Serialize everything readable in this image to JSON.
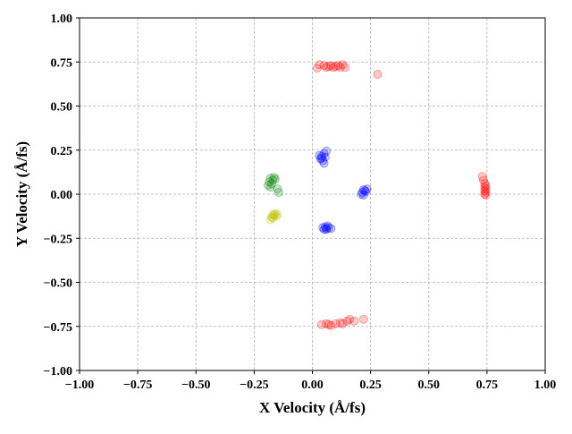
{
  "chart_data": {
    "type": "scatter",
    "xlabel": "X Velocity (Å/fs)",
    "ylabel": "Y Velocity (Å/fs)",
    "xlim": [
      -1.0,
      1.0
    ],
    "ylim": [
      -1.0,
      1.0
    ],
    "xticks": [
      -1.0,
      -0.75,
      -0.5,
      -0.25,
      0.0,
      0.25,
      0.5,
      0.75,
      1.0
    ],
    "yticks": [
      -1.0,
      -0.75,
      -0.5,
      -0.25,
      0.0,
      0.25,
      0.5,
      0.75,
      1.0
    ],
    "xtick_labels": [
      "−1.00",
      "−0.75",
      "−0.50",
      "−0.25",
      "0.00",
      "0.25",
      "0.50",
      "0.75",
      "1.00"
    ],
    "ytick_labels": [
      "−1.00",
      "−0.75",
      "−0.50",
      "−0.25",
      "0.00",
      "0.25",
      "0.50",
      "0.75",
      "1.00"
    ],
    "grid": true,
    "marker_opacity": 0.2,
    "series": [
      {
        "color": "#ff0000",
        "points": [
          [
            0.02,
            0.715
          ],
          [
            0.03,
            0.735
          ],
          [
            0.05,
            0.73
          ],
          [
            0.06,
            0.72
          ],
          [
            0.07,
            0.725
          ],
          [
            0.08,
            0.73
          ],
          [
            0.09,
            0.72
          ],
          [
            0.1,
            0.725
          ],
          [
            0.11,
            0.73
          ],
          [
            0.12,
            0.72
          ],
          [
            0.13,
            0.735
          ],
          [
            0.14,
            0.72
          ],
          [
            0.28,
            0.68
          ],
          [
            0.04,
            -0.74
          ],
          [
            0.06,
            -0.735
          ],
          [
            0.07,
            -0.74
          ],
          [
            0.08,
            -0.745
          ],
          [
            0.1,
            -0.735
          ],
          [
            0.12,
            -0.73
          ],
          [
            0.13,
            -0.735
          ],
          [
            0.15,
            -0.72
          ],
          [
            0.16,
            -0.71
          ],
          [
            0.18,
            -0.72
          ],
          [
            0.22,
            -0.71
          ],
          [
            0.73,
            0.1
          ],
          [
            0.735,
            0.08
          ],
          [
            0.74,
            0.06
          ],
          [
            0.745,
            0.05
          ],
          [
            0.74,
            0.04
          ],
          [
            0.745,
            0.03
          ],
          [
            0.74,
            0.02
          ],
          [
            0.745,
            0.01
          ],
          [
            0.74,
            0.0
          ],
          [
            0.745,
            -0.005
          ]
        ]
      },
      {
        "color": "#0000ff",
        "points": [
          [
            0.03,
            0.22
          ],
          [
            0.035,
            0.2
          ],
          [
            0.04,
            0.215
          ],
          [
            0.045,
            0.19
          ],
          [
            0.05,
            0.23
          ],
          [
            0.055,
            0.21
          ],
          [
            0.06,
            0.245
          ],
          [
            0.05,
            0.175
          ],
          [
            0.04,
            0.205
          ],
          [
            0.045,
            -0.19
          ],
          [
            0.05,
            -0.2
          ],
          [
            0.055,
            -0.185
          ],
          [
            0.06,
            -0.195
          ],
          [
            0.065,
            -0.18
          ],
          [
            0.07,
            -0.19
          ],
          [
            0.08,
            -0.195
          ],
          [
            0.06,
            -0.2
          ],
          [
            0.21,
            0.0
          ],
          [
            0.215,
            0.01
          ],
          [
            0.22,
            -0.005
          ],
          [
            0.225,
            0.02
          ],
          [
            0.23,
            0.015
          ],
          [
            0.235,
            0.03
          ],
          [
            0.22,
            0.025
          ]
        ]
      },
      {
        "color": "#008000",
        "points": [
          [
            -0.19,
            0.05
          ],
          [
            -0.185,
            0.07
          ],
          [
            -0.18,
            0.09
          ],
          [
            -0.175,
            0.06
          ],
          [
            -0.17,
            0.08
          ],
          [
            -0.18,
            0.04
          ],
          [
            -0.165,
            0.095
          ],
          [
            -0.16,
            0.085
          ],
          [
            -0.15,
            0.03
          ],
          [
            -0.145,
            0.01
          ]
        ]
      },
      {
        "color": "#bfbf00",
        "points": [
          [
            -0.18,
            -0.145
          ],
          [
            -0.175,
            -0.13
          ],
          [
            -0.17,
            -0.115
          ],
          [
            -0.165,
            -0.12
          ],
          [
            -0.16,
            -0.11
          ],
          [
            -0.155,
            -0.125
          ],
          [
            -0.15,
            -0.115
          ],
          [
            -0.17,
            -0.135
          ]
        ]
      }
    ]
  }
}
